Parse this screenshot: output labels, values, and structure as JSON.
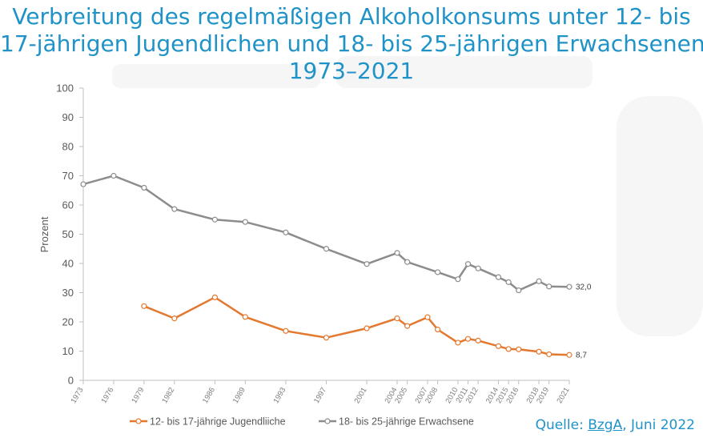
{
  "title": {
    "line1": "Verbreitung des regelmäßigen Alkoholkonsums unter 12- bis",
    "line2": "17-jährigen Jugendlichen und 18- bis 25-jährigen Erwachsenen",
    "line3": "1973–2021"
  },
  "source": {
    "prefix": "Quelle: ",
    "org": "BzgA",
    "suffix": ", Juni 2022"
  },
  "colors": {
    "title": "#1f93c8",
    "series_youth": "#e4782f",
    "series_adult": "#8c8c8c",
    "axis": "#bfbfbf"
  },
  "chart_data": {
    "type": "line",
    "title": "Verbreitung des regelmäßigen Alkoholkonsums unter 12- bis 17-jährigen Jugendlichen und 18- bis 25-jährigen Erwachsenen 1973–2021",
    "ylabel": "Prozent",
    "xlabel": "",
    "ylim": [
      0,
      100
    ],
    "yticks": [
      0,
      10,
      20,
      30,
      40,
      50,
      60,
      70,
      80,
      90,
      100
    ],
    "xlim": [
      1973,
      2021
    ],
    "xticks": [
      1973,
      1976,
      1979,
      1982,
      1986,
      1989,
      1993,
      1997,
      2001,
      2004,
      2005,
      2007,
      2008,
      2010,
      2011,
      2012,
      2014,
      2015,
      2016,
      2018,
      2019,
      2021
    ],
    "legend_position": "bottom",
    "series": [
      {
        "name": "12- bis 17-jährige Jugendliiche",
        "x": [
          1979,
          1982,
          1986,
          1989,
          1993,
          1997,
          2001,
          2004,
          2005,
          2007,
          2008,
          2010,
          2011,
          2012,
          2014,
          2015,
          2016,
          2018,
          2019,
          2021
        ],
        "values": [
          25.4,
          21.2,
          28.4,
          21.7,
          16.9,
          14.6,
          17.8,
          21.2,
          18.6,
          21.6,
          17.4,
          12.9,
          14.2,
          13.6,
          11.7,
          10.7,
          10.6,
          9.8,
          8.9,
          8.7
        ],
        "end_label": "8,7"
      },
      {
        "name": "18- bis 25-jährige Erwachsene",
        "x": [
          1973,
          1976,
          1979,
          1982,
          1986,
          1989,
          1993,
          1997,
          2001,
          2004,
          2005,
          2008,
          2010,
          2011,
          2012,
          2014,
          2015,
          2016,
          2018,
          2019,
          2021
        ],
        "values": [
          67.1,
          70.0,
          65.9,
          58.6,
          55.0,
          54.2,
          50.6,
          45.0,
          39.8,
          43.6,
          40.5,
          37.0,
          34.6,
          39.8,
          38.3,
          35.3,
          33.6,
          30.8,
          33.9,
          32.1,
          32.0
        ],
        "end_label": "32,0"
      }
    ]
  }
}
